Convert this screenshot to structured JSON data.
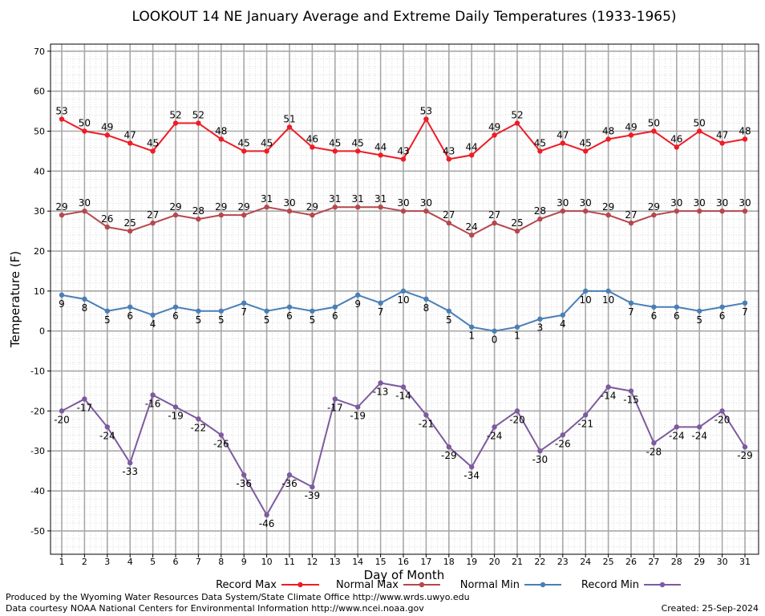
{
  "chart_data": {
    "type": "line",
    "title": "LOOKOUT 14 NE January Average and Extreme Daily Temperatures (1933-1965)",
    "xlabel": "Day of Month",
    "ylabel": "Temperature (F)",
    "xlim": [
      1,
      31
    ],
    "ylim": [
      -56,
      72
    ],
    "yticks": [
      -50,
      -40,
      -30,
      -20,
      -10,
      0,
      10,
      20,
      30,
      40,
      50,
      60,
      70
    ],
    "x": [
      1,
      2,
      3,
      4,
      5,
      6,
      7,
      8,
      9,
      10,
      11,
      12,
      13,
      14,
      15,
      16,
      17,
      18,
      19,
      20,
      21,
      22,
      23,
      24,
      25,
      26,
      27,
      28,
      29,
      30,
      31
    ],
    "grid": true,
    "legend_position": "bottom",
    "series": [
      {
        "name": "Record Max",
        "color": "#ee1c25",
        "values": [
          53,
          50,
          49,
          47,
          45,
          52,
          52,
          48,
          45,
          45,
          51,
          46,
          45,
          45,
          44,
          43,
          53,
          43,
          44,
          49,
          52,
          45,
          47,
          45,
          48,
          49,
          50,
          46,
          50,
          47,
          48
        ]
      },
      {
        "name": "Normal Max",
        "color": "#b5484d",
        "values": [
          29,
          30,
          26,
          25,
          27,
          29,
          28,
          29,
          29,
          31,
          30,
          29,
          31,
          31,
          31,
          30,
          30,
          27,
          24,
          27,
          25,
          28,
          30,
          30,
          29,
          27,
          29,
          30,
          30,
          30,
          30
        ]
      },
      {
        "name": "Normal Min",
        "color": "#4a7fb5",
        "values": [
          9,
          8,
          5,
          6,
          4,
          6,
          5,
          5,
          7,
          5,
          6,
          5,
          6,
          9,
          7,
          10,
          8,
          5,
          1,
          0,
          1,
          3,
          4,
          10,
          10,
          7,
          6,
          6,
          5,
          6,
          7
        ]
      },
      {
        "name": "Record Min",
        "color": "#7d5a9e",
        "values": [
          -20,
          -17,
          -24,
          -33,
          -16,
          -19,
          -22,
          -26,
          -36,
          -46,
          -36,
          -39,
          -17,
          -19,
          -13,
          -14,
          -21,
          -29,
          -34,
          -24,
          -20,
          -30,
          -26,
          -21,
          -14,
          -15,
          -28,
          -24,
          -24,
          -20,
          -29
        ]
      }
    ]
  },
  "footer": {
    "produced": "Produced by the Wyoming Water Resources Data System/State Climate Office http://www.wrds.uwyo.edu",
    "courtesy": "Data courtesy NOAA National Centers for Environmental Information http://www.ncei.noaa.gov",
    "created": "Created: 25-Sep-2024"
  }
}
